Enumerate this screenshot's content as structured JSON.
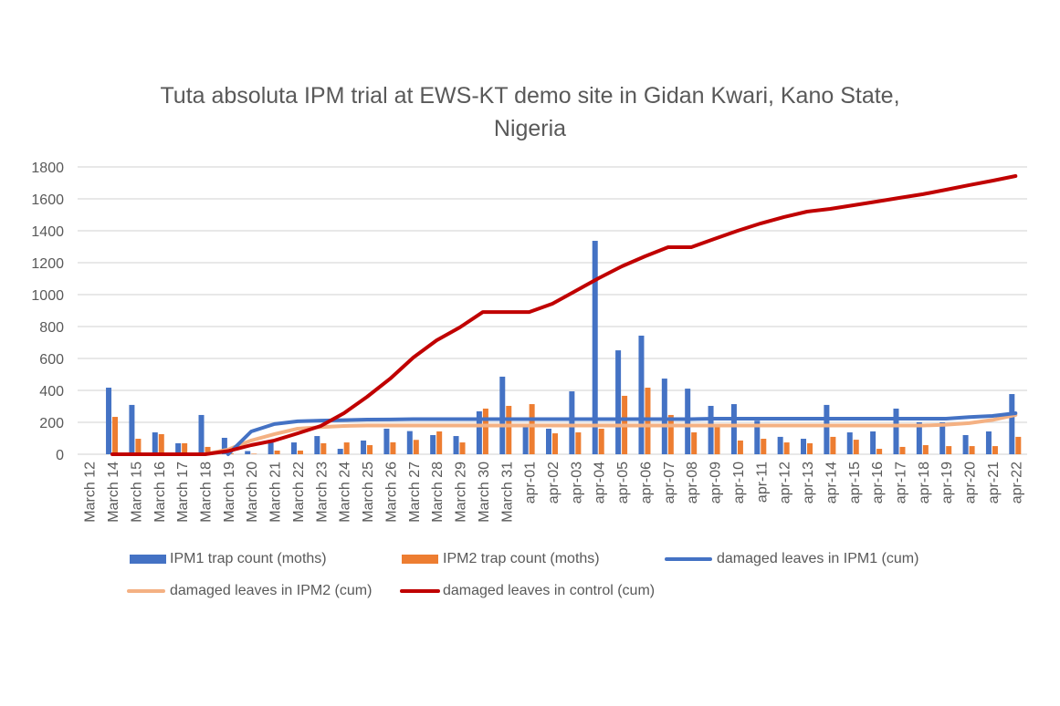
{
  "chart_data": {
    "type": "bar+line",
    "title_line1": "Tuta absoluta IPM trial at EWS-KT demo site in Gidan Kwari, Kano State,",
    "title_line2": "Nigeria",
    "ylim": [
      0,
      1800
    ],
    "yticks": [
      0,
      200,
      400,
      600,
      800,
      1000,
      1200,
      1400,
      1600,
      1800
    ],
    "grid": true,
    "legend_position": "bottom",
    "categories": [
      "March 12",
      "March 14",
      "March 15",
      "March 16",
      "March 17",
      "March 18",
      "March 19",
      "March 20",
      "March 21",
      "March 22",
      "March 23",
      "March 24",
      "March 25",
      "March 26",
      "March 27",
      "March 28",
      "March 29",
      "March 30",
      "March 31",
      "apr-01",
      "apr-02",
      "apr-03",
      "apr-04",
      "apr-05",
      "apr-06",
      "apr-07",
      "apr-08",
      "apr-09",
      "apr-10",
      "apr-11",
      "apr-12",
      "apr-13",
      "apr-14",
      "apr-15",
      "apr-16",
      "apr-17",
      "apr-18",
      "apr-19",
      "apr-20",
      "apr-21",
      "apr-22"
    ],
    "series": [
      {
        "name": "IPM1 trap count (moths)",
        "type": "bar",
        "color": "#4472C4",
        "values": [
          null,
          417,
          309,
          137,
          69,
          246,
          103,
          20,
          74,
          74,
          114,
          34,
          86,
          160,
          145,
          120,
          114,
          269,
          486,
          170,
          160,
          394,
          1337,
          651,
          743,
          474,
          411,
          303,
          314,
          210,
          109,
          97,
          309,
          137,
          143,
          286,
          200,
          200,
          120,
          143,
          377
        ]
      },
      {
        "name": "IPM2 trap count (moths)",
        "type": "bar",
        "color": "#ED7D31",
        "values": [
          null,
          234,
          97,
          126,
          69,
          46,
          5,
          3,
          23,
          23,
          69,
          74,
          57,
          75,
          90,
          143,
          74,
          286,
          303,
          314,
          131,
          137,
          160,
          366,
          417,
          246,
          137,
          170,
          86,
          97,
          74,
          69,
          109,
          91,
          34,
          46,
          57,
          51,
          51,
          51,
          109
        ]
      },
      {
        "name": "damaged leaves in IPM1 (cum)",
        "type": "line",
        "color": "#4472C4",
        "values": [
          null,
          null,
          null,
          null,
          null,
          null,
          0,
          143,
          189,
          206,
          211,
          214,
          217,
          218,
          220,
          220,
          220,
          220,
          220,
          220,
          220,
          220,
          220,
          220,
          220,
          220,
          220,
          223,
          223,
          223,
          223,
          223,
          223,
          223,
          223,
          223,
          223,
          223,
          233,
          240,
          257
        ]
      },
      {
        "name": "damaged leaves in IPM2 (cum)",
        "type": "line",
        "color": "#F4B183",
        "values": [
          null,
          null,
          null,
          null,
          null,
          0,
          30,
          86,
          126,
          160,
          170,
          177,
          180,
          180,
          180,
          180,
          180,
          180,
          180,
          180,
          180,
          180,
          180,
          180,
          180,
          180,
          180,
          180,
          180,
          180,
          180,
          180,
          180,
          180,
          180,
          180,
          180,
          185,
          195,
          215,
          246
        ]
      },
      {
        "name": "damaged leaves in control (cum)",
        "type": "line",
        "color": "#C00000",
        "values": [
          null,
          0,
          0,
          0,
          0,
          0,
          20,
          57,
          86,
          131,
          177,
          257,
          360,
          474,
          606,
          714,
          794,
          891,
          891,
          891,
          943,
          1023,
          1103,
          1177,
          1240,
          1297,
          1297,
          1349,
          1400,
          1446,
          1486,
          1520,
          1537,
          1560,
          1583,
          1606,
          1629,
          1657,
          1686,
          1714,
          1743
        ]
      }
    ]
  }
}
